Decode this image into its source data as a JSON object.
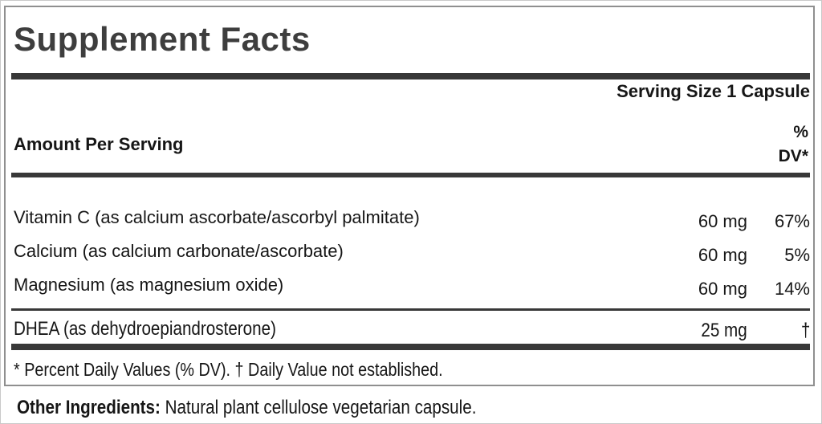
{
  "label": {
    "title": "Supplement Facts",
    "serving_size": "Serving Size 1 Capsule",
    "amount_header": "Amount Per Serving",
    "dv_header_line1": "%",
    "dv_header_line2": "DV*",
    "rows": [
      {
        "name": "Vitamin C (as calcium ascorbate/ascorbyl palmitate)",
        "amount": "60 mg",
        "dv": "67%"
      },
      {
        "name": "Calcium (as calcium carbonate/ascorbate)",
        "amount": "60 mg",
        "dv": "5%"
      },
      {
        "name": "Magnesium (as magnesium oxide)",
        "amount": "60 mg",
        "dv": "14%"
      },
      {
        "name": "DHEA (as dehydroepiandrosterone)",
        "amount": "25 mg",
        "dv": "†"
      }
    ],
    "footnote": "* Percent Daily Values (% DV). † Daily Value not established.",
    "other_ingredients_label": "Other Ingredients:",
    "other_ingredients_text": " Natural plant cellulose vegetarian capsule."
  },
  "colors": {
    "bar": "#383838",
    "title": "#3e3e3e",
    "text": "#161616",
    "border": "#8f8f8f"
  }
}
